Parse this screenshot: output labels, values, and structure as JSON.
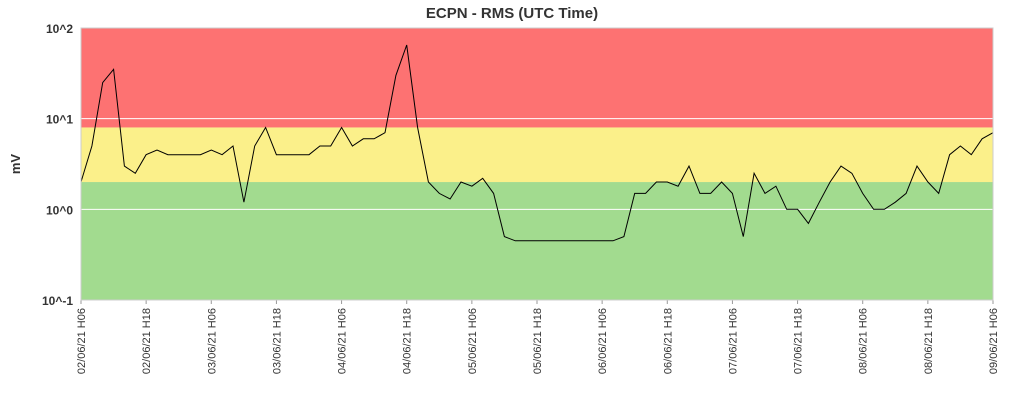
{
  "chart_data": {
    "type": "line",
    "title": "ECPN - RMS (UTC Time)",
    "y_label": "mV",
    "log_scale": true,
    "grid": true,
    "color": "#000000",
    "ylim": [
      0.1,
      100
    ],
    "yticks": [
      {
        "value": 0.1,
        "label": "10^-1"
      },
      {
        "value": 1,
        "label": "10^0"
      },
      {
        "value": 10,
        "label": "10^1"
      },
      {
        "value": 100,
        "label": "10^2"
      }
    ],
    "bands": [
      {
        "from": 0.1,
        "to": 2,
        "color": "#a2db8f"
      },
      {
        "from": 2,
        "to": 8,
        "color": "#fbf08a"
      },
      {
        "from": 8,
        "to": 100,
        "color": "#fd7272"
      }
    ],
    "categories": [
      "02/06/21 H06",
      null,
      null,
      null,
      null,
      null,
      "02/06/21 H18",
      null,
      null,
      null,
      null,
      null,
      "03/06/21 H06",
      null,
      null,
      null,
      null,
      null,
      "03/06/21 H18",
      null,
      null,
      null,
      null,
      null,
      "04/06/21 H06",
      null,
      null,
      null,
      null,
      null,
      "04/06/21 H18",
      null,
      null,
      null,
      null,
      null,
      "05/06/21 H06",
      null,
      null,
      null,
      null,
      null,
      "05/06/21 H18",
      null,
      null,
      null,
      null,
      null,
      "06/06/21 H06",
      null,
      null,
      null,
      null,
      null,
      "06/06/21 H18",
      null,
      null,
      null,
      null,
      null,
      "07/06/21 H06",
      null,
      null,
      null,
      null,
      null,
      "07/06/21 H18",
      null,
      null,
      null,
      null,
      null,
      "08/06/21 H06",
      null,
      null,
      null,
      null,
      null,
      "08/06/21 H18",
      null,
      null,
      null,
      null,
      null,
      "09/06/21 H06"
    ],
    "values": [
      2,
      5,
      25,
      35,
      3,
      2.5,
      4,
      4.5,
      4,
      4,
      4,
      4,
      4.5,
      4,
      5,
      1.2,
      5,
      8,
      4,
      4,
      4,
      4,
      5,
      5,
      8,
      5,
      6,
      6,
      7,
      30,
      65,
      8,
      2,
      1.5,
      1.3,
      2,
      1.8,
      2.2,
      1.5,
      0.5,
      0.45,
      0.45,
      0.45,
      0.45,
      0.45,
      0.45,
      0.45,
      0.45,
      0.45,
      0.45,
      0.5,
      1.5,
      1.5,
      2,
      2,
      1.8,
      3,
      1.5,
      1.5,
      2,
      1.5,
      0.5,
      2.5,
      1.5,
      1.8,
      1,
      1,
      0.7,
      1.2,
      2,
      3,
      2.5,
      1.5,
      1,
      1,
      1.2,
      1.5,
      3,
      2,
      1.5,
      4,
      5,
      4,
      6,
      7
    ]
  }
}
